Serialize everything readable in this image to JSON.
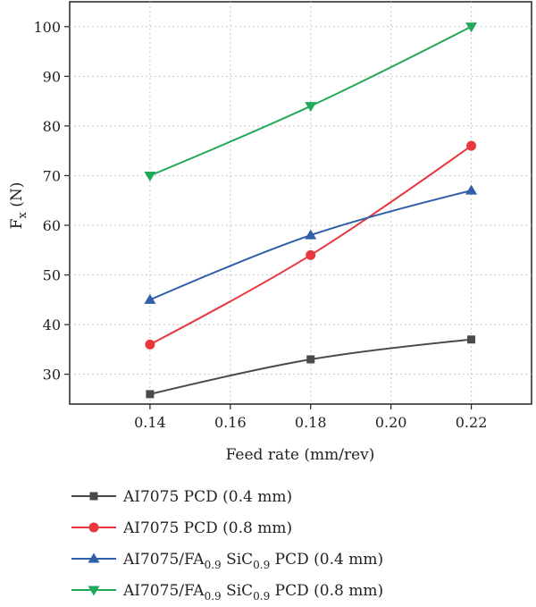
{
  "chart_data": {
    "type": "line",
    "xlabel": "Feed rate (mm/rev)",
    "ylabel": "F",
    "ylabel_sub": "x",
    "ylabel_unit": " (N)",
    "x_ticks": [
      0.14,
      0.16,
      0.18,
      0.2,
      0.22
    ],
    "x_tick_labels": [
      "0.14",
      "0.16",
      "0.18",
      "0.20",
      "0.22"
    ],
    "y_ticks": [
      30,
      40,
      50,
      60,
      70,
      80,
      90,
      100
    ],
    "y_tick_labels": [
      "30",
      "40",
      "50",
      "60",
      "70",
      "80",
      "90",
      "100"
    ],
    "xlim": [
      0.12,
      0.235
    ],
    "ylim": [
      24,
      105
    ],
    "grid": "dotted, horizontal and vertical",
    "legend_placement": "below chart",
    "series": [
      {
        "name": "AI7075 PCD (0.4 mm)",
        "legend": [
          "AI7075 PCD (0.4 mm)"
        ],
        "marker": "square",
        "color": "#4a4a4a",
        "x": [
          0.14,
          0.18,
          0.22
        ],
        "y": [
          26,
          33,
          37
        ]
      },
      {
        "name": "AI7075 PCD (0.8 mm)",
        "legend": [
          "AI7075 PCD (0.8 mm)"
        ],
        "marker": "circle",
        "color": "#e8383d",
        "x": [
          0.14,
          0.18,
          0.22
        ],
        "y": [
          36,
          54,
          76
        ]
      },
      {
        "name": "AI7075/FA0.9 SiC0.9 PCD (0.4 mm)",
        "legend": [
          "AI7075/FA",
          "0.9",
          " SiC",
          "0.9",
          " PCD (0.4 mm)"
        ],
        "marker": "triangle-up",
        "color": "#2e5fa8",
        "x": [
          0.14,
          0.18,
          0.22
        ],
        "y": [
          45,
          58,
          67
        ]
      },
      {
        "name": "AI7075/FA0.9 SiC0.9 PCD (0.8 mm)",
        "legend": [
          "AI7075/FA",
          "0.9",
          " SiC",
          "0.9",
          " PCD (0.8 mm)"
        ],
        "marker": "triangle-down",
        "color": "#22a85a",
        "x": [
          0.14,
          0.18,
          0.22
        ],
        "y": [
          70,
          84,
          100
        ]
      }
    ]
  }
}
